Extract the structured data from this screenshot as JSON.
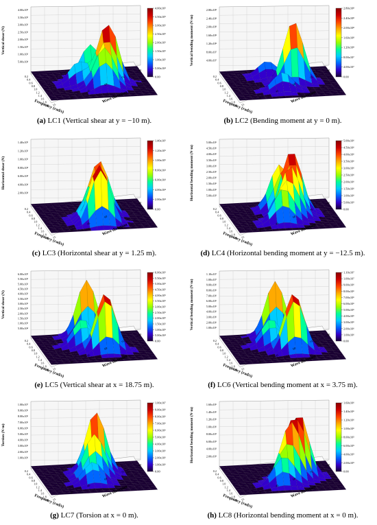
{
  "colorbar_colors": [
    "#1a0033",
    "#3300cc",
    "#0066ff",
    "#00ccff",
    "#00ff99",
    "#99ff00",
    "#ffff00",
    "#ffaa00",
    "#ff4400",
    "#cc0000",
    "#880000"
  ],
  "panels": [
    {
      "label": "(a)",
      "caption": "LC1 (Vertical shear at y = −10 m).",
      "zlabel": "Vertical shear (N)",
      "axis_ticks": [
        "4.00x10⁵",
        "3.50x10⁵",
        "3.00x10⁵",
        "2.50x10⁵",
        "2.00x10⁵",
        "1.50x10⁵",
        "1.00x10⁵",
        "5.00x10⁴"
      ],
      "colorbar_ticks": [
        "4.00x10⁵",
        "3.50x10⁵",
        "3.00x10⁵",
        "2.50x10⁵",
        "2.00x10⁵",
        "1.50x10⁵",
        "1.00x10⁵",
        "5.00x10⁴",
        "0.00"
      ],
      "xlabel": "Frequency (rad/s)",
      "ylabel": "Wave direction",
      "freq_ticks": [
        "0.2",
        "0.4",
        "0.6",
        "0.8",
        "1.0",
        "1.2",
        "1.4",
        "1.6",
        "1.8",
        "2.0"
      ],
      "dir_ticks": [
        "15",
        "30",
        "45",
        "60",
        "75",
        "90"
      ],
      "peaks": [
        [
          0.55,
          0.62,
          1.0
        ],
        [
          0.3,
          0.5,
          0.55
        ],
        [
          0.7,
          0.55,
          0.6
        ],
        [
          0.5,
          0.35,
          0.35
        ]
      ]
    },
    {
      "label": "(b)",
      "caption": "LC2 (Bending moment at y = 0 m).",
      "zlabel": "Vertical bending moment (N·m)",
      "axis_ticks": [
        "2.80x10⁸",
        "2.40x10⁸",
        "2.00x10⁸",
        "1.60x10⁸",
        "1.20x10⁸",
        "8.00x10⁷",
        "4.00x10⁷"
      ],
      "colorbar_ticks": [
        "2.80x10⁸",
        "2.40x10⁸",
        "2.00x10⁸",
        "1.60x10⁸",
        "1.20x10⁸",
        "8.00x10⁷",
        "4.00x10⁷",
        "0.00"
      ],
      "xlabel": "Frequency (rad/s)",
      "ylabel": "Wave direction",
      "freq_ticks": [
        "0.2",
        "0.4",
        "0.6",
        "0.8",
        "1.0",
        "1.2",
        "1.4",
        "1.6",
        "1.8",
        "2.0"
      ],
      "dir_ticks": [
        "15",
        "30",
        "45",
        "60",
        "75",
        "90"
      ],
      "peaks": [
        [
          0.5,
          0.6,
          1.0
        ],
        [
          0.25,
          0.4,
          0.25
        ],
        [
          0.75,
          0.45,
          0.3
        ]
      ]
    },
    {
      "label": "(c)",
      "caption": "LC3 (Horizontal shear at y = 1.25 m).",
      "zlabel": "Horizontal shear (N)",
      "axis_ticks": [
        "1.40x10⁵",
        "1.20x10⁵",
        "1.00x10⁵",
        "8.00x10⁴",
        "6.00x10⁴",
        "4.00x10⁴",
        "2.00x10⁴"
      ],
      "colorbar_ticks": [
        "1.40x10⁵",
        "1.20x10⁵",
        "1.00x10⁵",
        "8.00x10⁴",
        "6.00x10⁴",
        "4.00x10⁴",
        "2.00x10⁴",
        "0.00"
      ],
      "xlabel": "Frequency (rad/s)",
      "ylabel": "Wave direction",
      "freq_ticks": [
        "0.2",
        "0.4",
        "0.6",
        "0.8",
        "1.0",
        "1.2",
        "1.4",
        "1.6",
        "1.8",
        "2.0"
      ],
      "dir_ticks": [
        "15",
        "30",
        "45",
        "60",
        "75",
        "90"
      ],
      "peaks": [
        [
          0.5,
          0.55,
          0.85
        ],
        [
          0.78,
          0.5,
          1.0
        ],
        [
          0.62,
          0.45,
          0.4
        ]
      ]
    },
    {
      "label": "(d)",
      "caption": "LC4 (Horizontal bending moment at y = −12.5 m).",
      "zlabel": "Horizontal bending moment (N·m)",
      "axis_ticks": [
        "5.00x10⁶",
        "4.50x10⁶",
        "4.00x10⁶",
        "3.50x10⁶",
        "3.00x10⁶",
        "2.50x10⁶",
        "2.00x10⁶",
        "1.50x10⁶",
        "1.00x10⁶",
        "5.00x10⁵"
      ],
      "colorbar_ticks": [
        "5.00x10⁶",
        "4.50x10⁶",
        "4.00x10⁶",
        "3.50x10⁶",
        "3.00x10⁶",
        "2.50x10⁶",
        "2.00x10⁶",
        "1.50x10⁶",
        "1.00x10⁶",
        "5.00x10⁵",
        "0.00"
      ],
      "xlabel": "Frequency (rad/s)",
      "ylabel": "Wave direction",
      "freq_ticks": [
        "0.2",
        "0.4",
        "0.6",
        "0.8",
        "1.0",
        "1.2",
        "1.4",
        "1.6",
        "1.8",
        "2.0"
      ],
      "dir_ticks": [
        "15",
        "30",
        "45",
        "60",
        "75",
        "90"
      ],
      "peaks": [
        [
          0.45,
          0.6,
          1.0
        ],
        [
          0.3,
          0.5,
          0.7
        ],
        [
          0.62,
          0.55,
          0.8
        ],
        [
          0.75,
          0.45,
          0.5
        ]
      ]
    },
    {
      "label": "(e)",
      "caption": "LC5 (Vertical shear at x = 18.75 m).",
      "zlabel": "Vertical shear (N)",
      "axis_ticks": [
        "6.00x10⁵",
        "5.50x10⁵",
        "5.00x10⁵",
        "4.50x10⁵",
        "4.00x10⁵",
        "3.50x10⁵",
        "3.00x10⁵",
        "2.50x10⁵",
        "2.00x10⁵",
        "1.50x10⁵",
        "1.00x10⁵",
        "5.00x10⁴"
      ],
      "colorbar_ticks": [
        "6.00x10⁵",
        "5.50x10⁵",
        "5.00x10⁵",
        "4.50x10⁵",
        "4.00x10⁵",
        "3.50x10⁵",
        "3.00x10⁵",
        "2.50x10⁵",
        "2.00x10⁵",
        "1.50x10⁵",
        "1.00x10⁵",
        "5.00x10⁴",
        "0.00"
      ],
      "xlabel": "Frequency (rad/s)",
      "ylabel": "Wave direction",
      "freq_ticks": [
        "0.2",
        "0.4",
        "0.6",
        "0.8",
        "1.0",
        "1.2",
        "1.4",
        "1.6",
        "1.8",
        "2.0"
      ],
      "dir_ticks": [
        "15",
        "30",
        "45",
        "60",
        "75",
        "90"
      ],
      "peaks": [
        [
          0.12,
          0.5,
          0.92
        ],
        [
          0.65,
          0.58,
          1.0
        ],
        [
          0.45,
          0.4,
          0.45
        ]
      ]
    },
    {
      "label": "(f)",
      "caption": "LC6 (Vertical bending moment at x = 3.75 m).",
      "zlabel": "Vertical bending moment (N·m)",
      "axis_ticks": [
        "1.10x10⁷",
        "1.00x10⁷",
        "9.00x10⁶",
        "8.00x10⁶",
        "7.00x10⁶",
        "6.00x10⁶",
        "5.00x10⁶",
        "4.00x10⁶",
        "3.00x10⁶",
        "2.00x10⁶",
        "1.00x10⁶"
      ],
      "colorbar_ticks": [
        "1.10x10⁷",
        "1.00x10⁷",
        "9.00x10⁶",
        "8.00x10⁶",
        "7.00x10⁶",
        "6.00x10⁶",
        "5.00x10⁶",
        "4.00x10⁶",
        "3.00x10⁶",
        "2.00x10⁶",
        "1.00x10⁶",
        "0.00"
      ],
      "xlabel": "Frequency (rad/s)",
      "ylabel": "Wave direction",
      "freq_ticks": [
        "0.2",
        "0.4",
        "0.6",
        "0.8",
        "1.0",
        "1.2",
        "1.4",
        "1.6",
        "1.8",
        "2.0"
      ],
      "dir_ticks": [
        "15",
        "30",
        "45",
        "60",
        "75",
        "90"
      ],
      "peaks": [
        [
          0.12,
          0.5,
          0.9
        ],
        [
          0.65,
          0.58,
          1.0
        ],
        [
          0.45,
          0.4,
          0.45
        ]
      ]
    },
    {
      "label": "(g)",
      "caption": "LC7 (Torsion at x = 0 m).",
      "zlabel": "Torsion (N·m)",
      "axis_ticks": [
        "1.00x10⁷",
        "9.00x10⁶",
        "8.00x10⁶",
        "7.00x10⁶",
        "6.00x10⁶",
        "5.00x10⁶",
        "4.00x10⁶",
        "3.00x10⁶",
        "2.00x10⁶",
        "1.00x10⁶"
      ],
      "colorbar_ticks": [
        "1.00x10⁷",
        "9.00x10⁶",
        "8.00x10⁶",
        "7.00x10⁶",
        "6.00x10⁶",
        "5.00x10⁶",
        "4.00x10⁶",
        "3.00x10⁶",
        "2.00x10⁶",
        "1.00x10⁶",
        "0.00"
      ],
      "xlabel": "Frequency (rad/s)",
      "ylabel": "Wave direction",
      "freq_ticks": [
        "0.2",
        "0.4",
        "0.6",
        "0.8",
        "1.0",
        "1.2",
        "1.4",
        "1.6",
        "1.8",
        "2.0"
      ],
      "dir_ticks": [
        "15",
        "30",
        "45",
        "60",
        "75",
        "90"
      ],
      "peaks": [
        [
          0.3,
          0.55,
          1.0
        ],
        [
          0.5,
          0.5,
          0.7
        ],
        [
          0.7,
          0.45,
          0.35
        ]
      ]
    },
    {
      "label": "(h)",
      "caption": "LC8 (Horizontal bending moment at x = 0 m).",
      "zlabel": "Horizontal bending moment (N·m)",
      "axis_ticks": [
        "1.60x10⁶",
        "1.40x10⁶",
        "1.20x10⁶",
        "1.00x10⁶",
        "8.00x10⁵",
        "6.00x10⁵",
        "4.00x10⁵",
        "2.00x10⁵"
      ],
      "colorbar_ticks": [
        "1.60x10⁶",
        "1.40x10⁶",
        "1.20x10⁶",
        "1.00x10⁶",
        "8.00x10⁵",
        "6.00x10⁵",
        "4.00x10⁵",
        "2.00x10⁵",
        "0.00"
      ],
      "xlabel": "Frequency (rad/s)",
      "ylabel": "Wave direction",
      "freq_ticks": [
        "0.2",
        "0.4",
        "0.6",
        "0.8",
        "1.0",
        "1.2",
        "1.4",
        "1.6",
        "1.8",
        "2.0"
      ],
      "dir_ticks": [
        "15",
        "30",
        "45",
        "60",
        "75",
        "90"
      ],
      "peaks": [
        [
          0.5,
          0.65,
          1.0
        ],
        [
          0.62,
          0.55,
          0.85
        ],
        [
          0.75,
          0.45,
          0.4
        ]
      ]
    }
  ]
}
